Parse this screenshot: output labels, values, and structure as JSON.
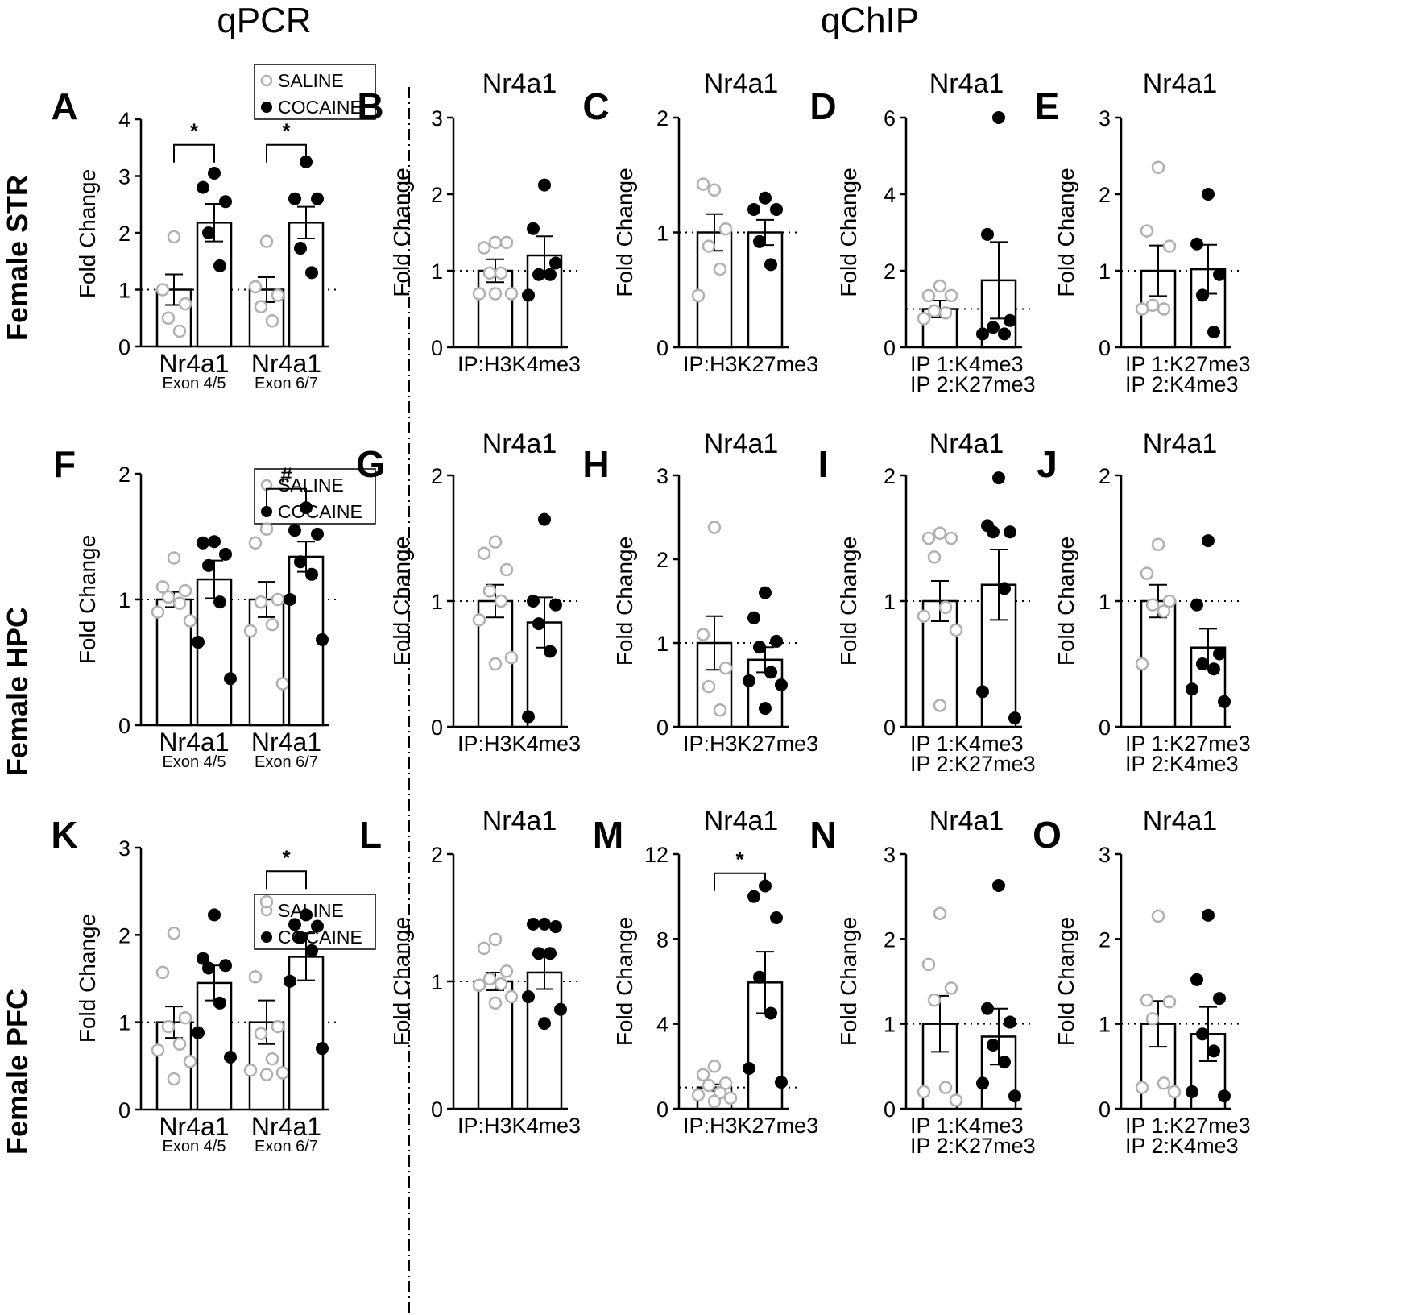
{
  "headers": {
    "qpcr": "qPCR",
    "qchip": "qChIP"
  },
  "rows": [
    "Female STR",
    "Female HPC",
    "Female PFC"
  ],
  "legend": {
    "saline": "SALINE",
    "cocaine": "COCAINE"
  },
  "colors": {
    "saline": "#b0b0b0",
    "cocaine": "#000000",
    "axis": "#000000"
  },
  "chart_data": [
    {
      "panel": "A",
      "type": "bar",
      "kind": "qpcr",
      "title": "",
      "ylabel": "Fold Change",
      "ylim": [
        0,
        4
      ],
      "yticks": [
        0,
        1,
        2,
        3,
        4
      ],
      "groups": [
        {
          "label": "Nr4a1",
          "sublabel": "Exon 4/5"
        },
        {
          "label": "Nr4a1",
          "sublabel": "Exon 6/7"
        }
      ],
      "series": [
        {
          "name": "SALINE",
          "values": [
            1.0,
            1.0
          ],
          "sem": [
            0.27,
            0.22
          ],
          "points": [
            [
              1.93,
              1.0,
              0.75,
              0.5,
              0.27
            ],
            [
              1.85,
              1.05,
              0.9,
              0.7,
              0.45
            ]
          ]
        },
        {
          "name": "COCAINE",
          "values": [
            2.18,
            2.18
          ],
          "sem": [
            0.33,
            0.28
          ],
          "points": [
            [
              3.05,
              2.8,
              2.55,
              2.0,
              1.42
            ],
            [
              3.25,
              2.6,
              2.6,
              1.73,
              1.3
            ]
          ]
        }
      ],
      "significance": [
        {
          "group": 0,
          "label": "*",
          "y": 3.55
        },
        {
          "group": 1,
          "label": "*",
          "y": 3.55
        }
      ]
    },
    {
      "panel": "B",
      "type": "bar",
      "kind": "chip",
      "title": "Nr4a1",
      "ylabel": "Fold Change",
      "ylim": [
        0,
        3
      ],
      "yticks": [
        0,
        1,
        2,
        3
      ],
      "xlabels": [
        "IP:H3K4me3"
      ],
      "series": [
        {
          "name": "SALINE",
          "value": 1.0,
          "sem": 0.15,
          "points": [
            1.37,
            1.3,
            1.37,
            0.97,
            0.97,
            0.7,
            0.7,
            0.7
          ]
        },
        {
          "name": "COCAINE",
          "value": 1.2,
          "sem": 0.25,
          "points": [
            2.12,
            1.55,
            1.1,
            0.95,
            0.95,
            0.68
          ]
        }
      ],
      "significance": []
    },
    {
      "panel": "C",
      "type": "bar",
      "kind": "chip",
      "title": "Nr4a1",
      "ylabel": "Fold Change",
      "ylim": [
        0,
        2
      ],
      "yticks": [
        0,
        1,
        2
      ],
      "xlabels": [
        "IP:H3K27me3"
      ],
      "series": [
        {
          "name": "SALINE",
          "value": 1.0,
          "sem": 0.16,
          "points": [
            1.37,
            1.42,
            1.03,
            0.88,
            0.68,
            0.45
          ]
        },
        {
          "name": "COCAINE",
          "value": 1.0,
          "sem": 0.11,
          "points": [
            1.3,
            1.2,
            1.2,
            0.92,
            0.72
          ]
        }
      ],
      "significance": []
    },
    {
      "panel": "D",
      "type": "bar",
      "kind": "chip",
      "title": "Nr4a1",
      "ylabel": "Fold Change",
      "ylim": [
        0,
        6
      ],
      "yticks": [
        0,
        2,
        4,
        6
      ],
      "xlabels": [
        "IP 1:K4me3",
        "IP 2:K27me3"
      ],
      "series": [
        {
          "name": "SALINE",
          "value": 1.0,
          "sem": 0.22,
          "points": [
            1.6,
            1.35,
            1.35,
            0.95,
            0.9,
            0.75
          ]
        },
        {
          "name": "COCAINE",
          "value": 1.75,
          "sem": 1.0,
          "points": [
            6.0,
            2.95,
            0.7,
            0.52,
            0.35,
            0.35
          ]
        }
      ],
      "significance": []
    },
    {
      "panel": "E",
      "type": "bar",
      "kind": "chip",
      "title": "Nr4a1",
      "ylabel": "Fold Change",
      "ylim": [
        0,
        3
      ],
      "yticks": [
        0,
        1,
        2,
        3
      ],
      "xlabels": [
        "IP 1:K27me3",
        "IP 2:K4me3"
      ],
      "series": [
        {
          "name": "SALINE",
          "value": 1.0,
          "sem": 0.33,
          "points": [
            2.35,
            1.52,
            1.32,
            0.55,
            0.5,
            0.5
          ]
        },
        {
          "name": "COCAINE",
          "value": 1.02,
          "sem": 0.32,
          "points": [
            2.0,
            1.35,
            0.95,
            0.68,
            0.2
          ]
        }
      ],
      "significance": []
    },
    {
      "panel": "F",
      "type": "bar",
      "kind": "qpcr",
      "title": "",
      "ylabel": "Fold Change",
      "ylim": [
        0,
        2
      ],
      "yticks": [
        0,
        1,
        2
      ],
      "groups": [
        {
          "label": "Nr4a1",
          "sublabel": "Exon 4/5"
        },
        {
          "label": "Nr4a1",
          "sublabel": "Exon 6/7"
        }
      ],
      "series": [
        {
          "name": "SALINE",
          "values": [
            1.0,
            1.0
          ],
          "sem": [
            0.06,
            0.14
          ],
          "points": [
            [
              1.33,
              1.1,
              1.07,
              1.02,
              0.97,
              0.9,
              0.83
            ],
            [
              1.56,
              1.45,
              1.0,
              0.98,
              0.8,
              0.75,
              0.33
            ]
          ]
        },
        {
          "name": "COCAINE",
          "values": [
            1.16,
            1.34
          ],
          "sem": [
            0.15,
            0.12
          ],
          "points": [
            [
              1.46,
              1.45,
              1.36,
              1.27,
              0.98,
              0.66,
              0.37
            ],
            [
              1.73,
              1.55,
              1.52,
              1.3,
              1.2,
              1.0,
              0.68
            ]
          ]
        }
      ],
      "significance": [
        {
          "group": 1,
          "label": "#",
          "y": 1.88
        }
      ]
    },
    {
      "panel": "G",
      "type": "bar",
      "kind": "chip",
      "title": "Nr4a1",
      "ylabel": "Fold Change",
      "ylim": [
        0,
        2
      ],
      "yticks": [
        0,
        1,
        2
      ],
      "xlabels": [
        "IP:H3K4me3"
      ],
      "series": [
        {
          "name": "SALINE",
          "value": 1.0,
          "sem": 0.13,
          "points": [
            1.47,
            1.38,
            1.25,
            1.08,
            1.0,
            0.85,
            0.55,
            0.5
          ]
        },
        {
          "name": "COCAINE",
          "value": 0.83,
          "sem": 0.2,
          "points": [
            1.65,
            1.0,
            0.97,
            0.82,
            0.6,
            0.08
          ]
        }
      ],
      "significance": []
    },
    {
      "panel": "H",
      "type": "bar",
      "kind": "chip",
      "title": "Nr4a1",
      "ylabel": "Fold Change",
      "ylim": [
        0,
        3
      ],
      "yticks": [
        0,
        1,
        2,
        3
      ],
      "xlabels": [
        "IP:H3K27me3"
      ],
      "series": [
        {
          "name": "SALINE",
          "value": 1.0,
          "sem": 0.32,
          "points": [
            2.38,
            1.1,
            0.7,
            0.48,
            0.2
          ]
        },
        {
          "name": "COCAINE",
          "value": 0.8,
          "sem": 0.15,
          "points": [
            1.6,
            1.3,
            1.02,
            0.95,
            0.65,
            0.55,
            0.5,
            0.22
          ]
        }
      ],
      "significance": []
    },
    {
      "panel": "I",
      "type": "bar",
      "kind": "chip",
      "title": "Nr4a1",
      "ylabel": "Fold Change",
      "ylim": [
        0,
        2
      ],
      "yticks": [
        0,
        1,
        2
      ],
      "xlabels": [
        "IP 1:K4me3",
        "IP 2:K27me3"
      ],
      "series": [
        {
          "name": "SALINE",
          "value": 1.0,
          "sem": 0.16,
          "points": [
            1.54,
            1.5,
            1.5,
            1.35,
            0.95,
            0.88,
            0.77,
            0.17
          ]
        },
        {
          "name": "COCAINE",
          "value": 1.13,
          "sem": 0.28,
          "points": [
            1.98,
            1.6,
            1.55,
            1.55,
            1.1,
            0.28,
            0.07
          ]
        }
      ],
      "significance": []
    },
    {
      "panel": "J",
      "type": "bar",
      "kind": "chip",
      "title": "Nr4a1",
      "ylabel": "Fold Change",
      "ylim": [
        0,
        2
      ],
      "yticks": [
        0,
        1,
        2
      ],
      "xlabels": [
        "IP 1:K27me3",
        "IP 2:K4me3"
      ],
      "series": [
        {
          "name": "SALINE",
          "value": 1.0,
          "sem": 0.13,
          "points": [
            1.45,
            1.22,
            1.0,
            0.97,
            0.92,
            0.5
          ]
        },
        {
          "name": "COCAINE",
          "value": 0.63,
          "sem": 0.15,
          "points": [
            1.48,
            0.97,
            0.58,
            0.5,
            0.46,
            0.3,
            0.2
          ]
        }
      ],
      "significance": []
    },
    {
      "panel": "K",
      "type": "bar",
      "kind": "qpcr",
      "title": "",
      "ylabel": "Fold Change",
      "ylim": [
        0,
        3
      ],
      "yticks": [
        0,
        1,
        2,
        3
      ],
      "groups": [
        {
          "label": "Nr4a1",
          "sublabel": "Exon 4/5"
        },
        {
          "label": "Nr4a1",
          "sublabel": "Exon 6/7"
        }
      ],
      "series": [
        {
          "name": "SALINE",
          "values": [
            1.0,
            1.0
          ],
          "sem": [
            0.18,
            0.25
          ],
          "points": [
            [
              2.02,
              1.57,
              1.05,
              0.95,
              0.75,
              0.68,
              0.55,
              0.35
            ],
            [
              2.38,
              1.52,
              0.95,
              0.87,
              0.58,
              0.45,
              0.42,
              0.4
            ]
          ]
        },
        {
          "name": "COCAINE",
          "values": [
            1.45,
            1.75
          ],
          "sem": [
            0.2,
            0.27
          ],
          "points": [
            [
              2.23,
              1.73,
              1.65,
              1.62,
              1.22,
              0.88,
              0.6
            ],
            [
              2.23,
              2.12,
              2.1,
              1.97,
              1.82,
              1.47,
              0.7
            ]
          ]
        }
      ],
      "significance": [
        {
          "group": 1,
          "label": "*",
          "y": 2.73
        }
      ]
    },
    {
      "panel": "L",
      "type": "bar",
      "kind": "chip",
      "title": "Nr4a1",
      "ylabel": "Fold Change",
      "ylim": [
        0,
        2
      ],
      "yticks": [
        0,
        1,
        2
      ],
      "xlabels": [
        "IP:H3K4me3"
      ],
      "series": [
        {
          "name": "SALINE",
          "value": 1.0,
          "sem": 0.07,
          "points": [
            1.33,
            1.26,
            1.08,
            1.02,
            0.98,
            0.97,
            0.88,
            0.83
          ]
        },
        {
          "name": "COCAINE",
          "value": 1.07,
          "sem": 0.13,
          "points": [
            1.45,
            1.45,
            1.43,
            1.22,
            1.22,
            0.88,
            0.78,
            0.67
          ]
        }
      ],
      "significance": []
    },
    {
      "panel": "M",
      "type": "bar",
      "kind": "chip",
      "title": "Nr4a1",
      "ylabel": "Fold Change",
      "ylim": [
        0,
        12
      ],
      "yticks": [
        0,
        4,
        8,
        12
      ],
      "xlabels": [
        "IP:H3K27me3"
      ],
      "series": [
        {
          "name": "SALINE",
          "value": 1.0,
          "sem": 0.15,
          "points": [
            2.0,
            1.6,
            1.2,
            1.1,
            0.75,
            0.65,
            0.5,
            0.35
          ]
        },
        {
          "name": "COCAINE",
          "value": 5.95,
          "sem": 1.45,
          "points": [
            10.5,
            10.0,
            9.0,
            6.2,
            4.5,
            1.9,
            1.25
          ]
        }
      ],
      "significance": [
        {
          "label": "*",
          "y": 11.1
        }
      ]
    },
    {
      "panel": "N",
      "type": "bar",
      "kind": "chip",
      "title": "Nr4a1",
      "ylabel": "Fold Change",
      "ylim": [
        0,
        3
      ],
      "yticks": [
        0,
        1,
        2,
        3
      ],
      "xlabels": [
        "IP 1:K4me3",
        "IP 2:K27me3"
      ],
      "series": [
        {
          "name": "SALINE",
          "value": 1.0,
          "sem": 0.33,
          "points": [
            2.3,
            1.7,
            1.42,
            1.28,
            0.25,
            0.2,
            0.1
          ]
        },
        {
          "name": "COCAINE",
          "value": 0.85,
          "sem": 0.33,
          "points": [
            2.63,
            1.18,
            1.02,
            0.75,
            0.55,
            0.3,
            0.15
          ]
        }
      ],
      "significance": []
    },
    {
      "panel": "O",
      "type": "bar",
      "kind": "chip",
      "title": "Nr4a1",
      "ylabel": "Fold Change",
      "ylim": [
        0,
        3
      ],
      "yticks": [
        0,
        1,
        2,
        3
      ],
      "xlabels": [
        "IP 1:K27me3",
        "IP 2:K4me3"
      ],
      "series": [
        {
          "name": "SALINE",
          "value": 1.0,
          "sem": 0.27,
          "points": [
            2.27,
            1.28,
            1.26,
            1.06,
            0.3,
            0.25,
            0.2
          ]
        },
        {
          "name": "COCAINE",
          "value": 0.88,
          "sem": 0.32,
          "points": [
            2.28,
            1.52,
            1.3,
            0.88,
            0.68,
            0.2,
            0.15
          ]
        }
      ],
      "significance": []
    }
  ]
}
